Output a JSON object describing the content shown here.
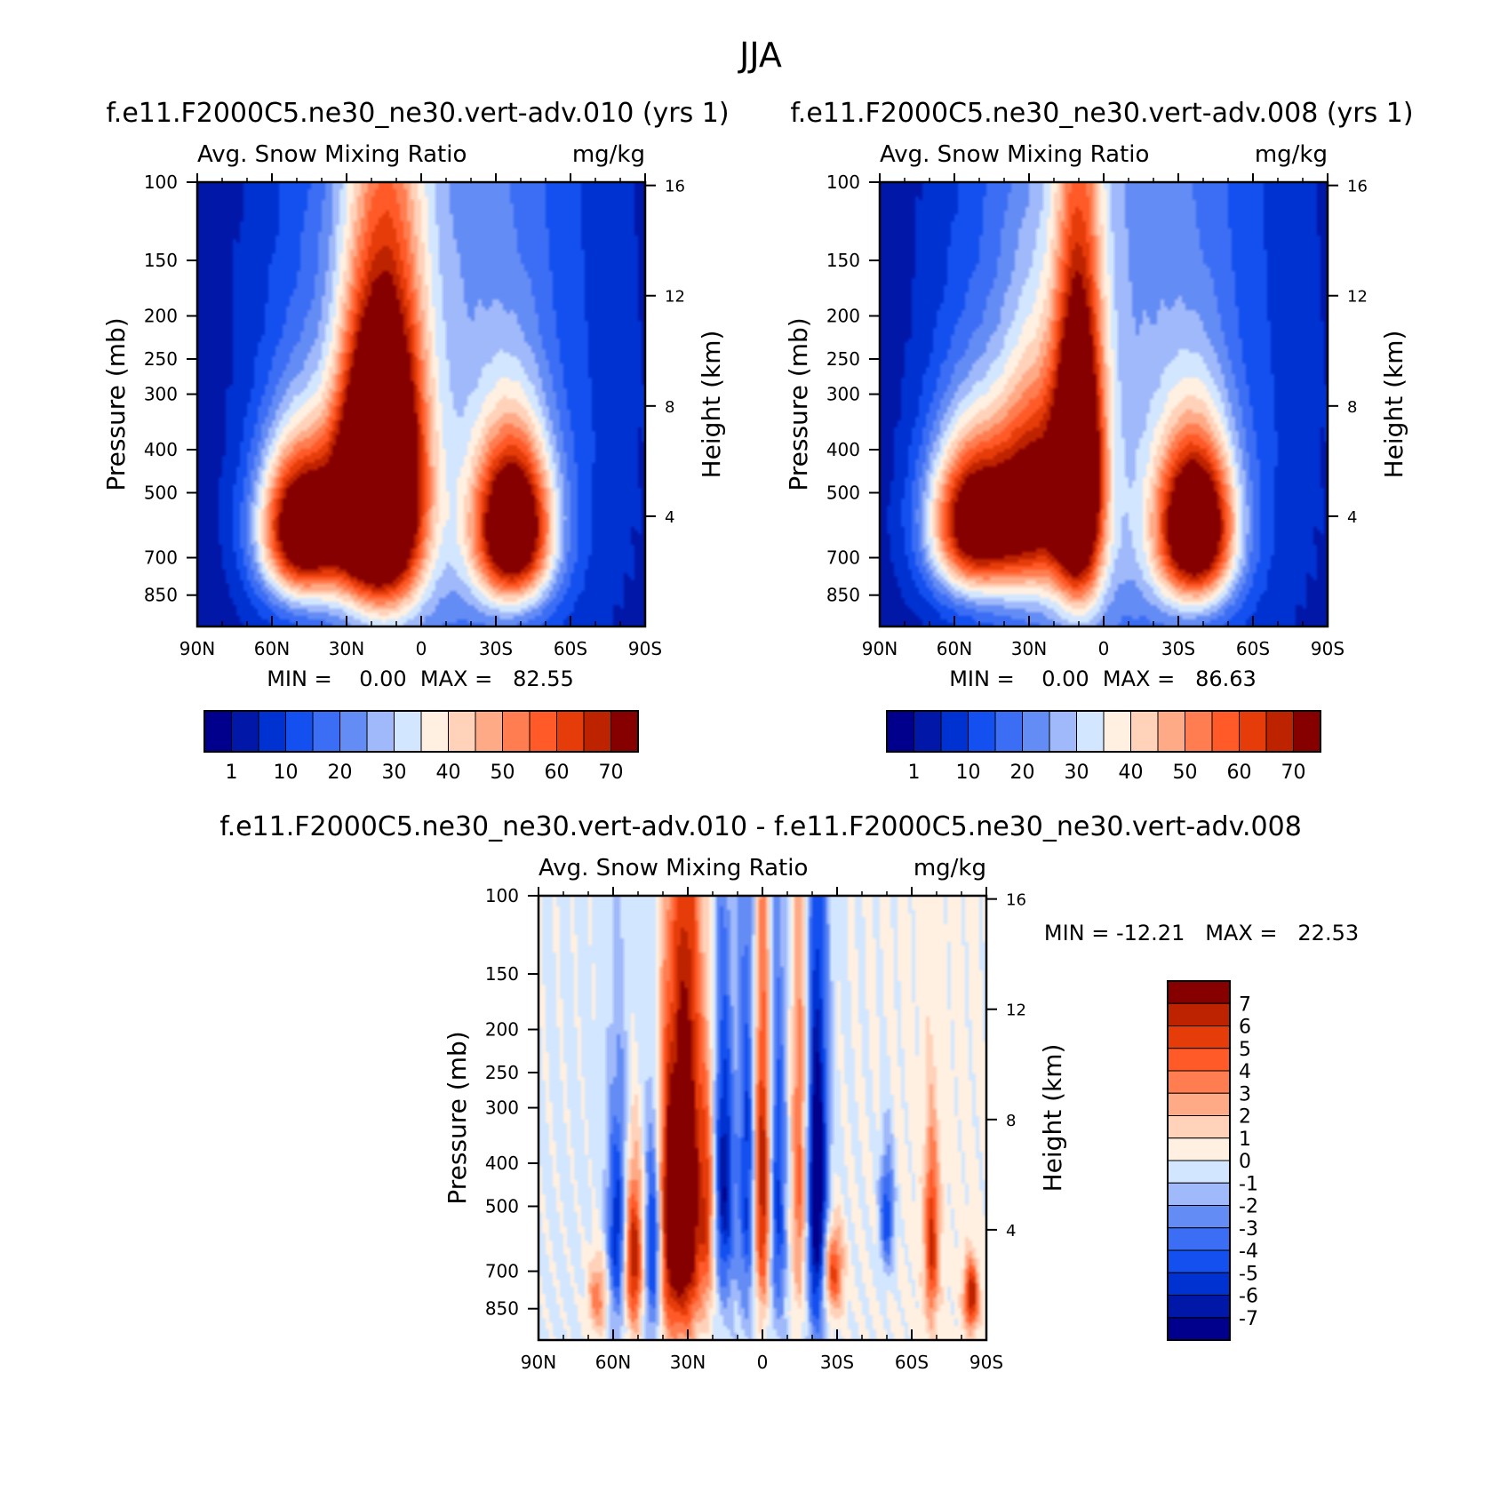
{
  "figure": {
    "title": "JJA"
  },
  "colors": {
    "levels_abs": [
      "#00008c",
      "#0017a8",
      "#0032d2",
      "#1450f0",
      "#3c6ef5",
      "#648cf5",
      "#a0b9fa",
      "#d2e6ff",
      "#fff0e1",
      "#ffd2b9",
      "#ffaa87",
      "#ff7d50",
      "#ff5a28",
      "#e63c0a",
      "#be2300",
      "#870000"
    ],
    "levels_diff": [
      "#00008c",
      "#0017a8",
      "#0032d2",
      "#1450f0",
      "#3c6ef5",
      "#648cf5",
      "#a0b9fa",
      "#d2e6ff",
      "#fff0e1",
      "#ffd2b9",
      "#ffaa87",
      "#ff7d50",
      "#ff5a28",
      "#e63c0a",
      "#be2300",
      "#870000"
    ]
  },
  "chart_data": [
    {
      "type": "heatmap",
      "id": "panel1",
      "title": "f.e11.F2000C5.ne30_ne30.vert-adv.010 (yrs 1)",
      "left_label": "Avg. Snow Mixing Ratio",
      "right_label": "mg/kg",
      "xlabel": "",
      "ylabel": "Pressure (mb)",
      "y2label": "Height (km)",
      "x_ticks": [
        "90N",
        "60N",
        "30N",
        "0",
        "30S",
        "60S",
        "90S"
      ],
      "x_values": [
        90,
        60,
        30,
        0,
        -30,
        -60,
        -90
      ],
      "y_ticks": [
        "100",
        "150",
        "200",
        "250",
        "300",
        "400",
        "500",
        "700",
        "850"
      ],
      "y_values": [
        100,
        150,
        200,
        250,
        300,
        400,
        500,
        700,
        850
      ],
      "y2_ticks": [
        "16",
        "12",
        "8",
        "4"
      ],
      "y2_values": [
        16,
        12,
        8,
        4
      ],
      "ylim": [
        100,
        1000
      ],
      "stats": "MIN =    0.00  MAX =   82.55",
      "colorbar_labels": [
        "1",
        "10",
        "20",
        "30",
        "40",
        "50",
        "60",
        "70"
      ],
      "blobs": [
        {
          "lat": 48,
          "p": 600,
          "sl": 12,
          "sp": 170,
          "a": 80
        },
        {
          "lat": 12,
          "p": 480,
          "sl": 10,
          "sp": 260,
          "a": 80
        },
        {
          "lat": 24,
          "p": 500,
          "sl": 9,
          "sp": 220,
          "a": 62
        },
        {
          "lat": -37,
          "p": 600,
          "sl": 11,
          "sp": 180,
          "a": 80
        },
        {
          "lat": 10,
          "p": 350,
          "sl": 38,
          "sp": 1000,
          "a": 16
        },
        {
          "lat": -25,
          "p": 400,
          "sl": 45,
          "sp": 600,
          "a": 12
        }
      ]
    },
    {
      "type": "heatmap",
      "id": "panel2",
      "title": "f.e11.F2000C5.ne30_ne30.vert-adv.008 (yrs 1)",
      "left_label": "Avg. Snow Mixing Ratio",
      "right_label": "mg/kg",
      "xlabel": "",
      "ylabel": "Pressure (mb)",
      "y2label": "Height (km)",
      "x_ticks": [
        "90N",
        "60N",
        "30N",
        "0",
        "30S",
        "60S",
        "90S"
      ],
      "x_values": [
        90,
        60,
        30,
        0,
        -30,
        -60,
        -90
      ],
      "y_ticks": [
        "100",
        "150",
        "200",
        "250",
        "300",
        "400",
        "500",
        "700",
        "850"
      ],
      "y_values": [
        100,
        150,
        200,
        250,
        300,
        400,
        500,
        700,
        850
      ],
      "y2_ticks": [
        "16",
        "12",
        "8",
        "4"
      ],
      "y2_values": [
        16,
        12,
        8,
        4
      ],
      "ylim": [
        100,
        1000
      ],
      "stats": "MIN =    0.00  MAX =   86.63",
      "colorbar_labels": [
        "1",
        "10",
        "20",
        "30",
        "40",
        "50",
        "60",
        "70"
      ],
      "blobs": [
        {
          "lat": 52,
          "p": 580,
          "sl": 13,
          "sp": 170,
          "a": 75
        },
        {
          "lat": 10,
          "p": 460,
          "sl": 7,
          "sp": 260,
          "a": 86
        },
        {
          "lat": 28,
          "p": 520,
          "sl": 10,
          "sp": 200,
          "a": 50
        },
        {
          "lat": -37,
          "p": 600,
          "sl": 11,
          "sp": 180,
          "a": 82
        },
        {
          "lat": 10,
          "p": 350,
          "sl": 38,
          "sp": 1000,
          "a": 16
        },
        {
          "lat": -25,
          "p": 400,
          "sl": 45,
          "sp": 600,
          "a": 12
        }
      ]
    },
    {
      "type": "heatmap",
      "id": "panel3",
      "title": "f.e11.F2000C5.ne30_ne30.vert-adv.010 - f.e11.F2000C5.ne30_ne30.vert-adv.008",
      "left_label": "Avg. Snow Mixing Ratio",
      "right_label": "mg/kg",
      "xlabel": "",
      "ylabel": "Pressure (mb)",
      "y2label": "Height (km)",
      "x_ticks": [
        "90N",
        "60N",
        "30N",
        "0",
        "30S",
        "60S",
        "90S"
      ],
      "x_values": [
        90,
        60,
        30,
        0,
        -30,
        -60,
        -90
      ],
      "y_ticks": [
        "100",
        "150",
        "200",
        "250",
        "300",
        "400",
        "500",
        "700",
        "850"
      ],
      "y_values": [
        100,
        150,
        200,
        250,
        300,
        400,
        500,
        700,
        850
      ],
      "y2_ticks": [
        "16",
        "12",
        "8",
        "4"
      ],
      "y2_values": [
        16,
        12,
        8,
        4
      ],
      "ylim": [
        100,
        1000
      ],
      "stats": "MIN = -12.21   MAX =   22.53",
      "colorbar_labels": [
        "7",
        "6",
        "5",
        "4",
        "3",
        "2",
        "1",
        "0",
        "-1",
        "-2",
        "-3",
        "-4",
        "-5",
        "-6",
        "-7"
      ],
      "blobs": [
        {
          "lat": 52,
          "p": 650,
          "sl": 3,
          "sp": 200,
          "a": 8
        },
        {
          "lat": 58,
          "p": 580,
          "sl": 3,
          "sp": 230,
          "a": -6
        },
        {
          "lat": 44,
          "p": 620,
          "sl": 2.5,
          "sp": 220,
          "a": -6
        },
        {
          "lat": 37,
          "p": 520,
          "sl": 3.5,
          "sp": 300,
          "a": 9
        },
        {
          "lat": 30,
          "p": 450,
          "sl": 3.5,
          "sp": 340,
          "a": 10
        },
        {
          "lat": 22,
          "p": 500,
          "sl": 3,
          "sp": 250,
          "a": 6
        },
        {
          "lat": 16,
          "p": 440,
          "sl": 3,
          "sp": 230,
          "a": -7
        },
        {
          "lat": 6,
          "p": 420,
          "sl": 2.5,
          "sp": 280,
          "a": -5
        },
        {
          "lat": 0,
          "p": 440,
          "sl": 2.5,
          "sp": 280,
          "a": 8
        },
        {
          "lat": -6,
          "p": 470,
          "sl": 2.5,
          "sp": 280,
          "a": -5
        },
        {
          "lat": -15,
          "p": 420,
          "sl": 2.5,
          "sp": 300,
          "a": 5
        },
        {
          "lat": -22,
          "p": 470,
          "sl": 3,
          "sp": 320,
          "a": -9
        },
        {
          "lat": -28,
          "p": 700,
          "sl": 3,
          "sp": 120,
          "a": 6
        },
        {
          "lat": -50,
          "p": 520,
          "sl": 2,
          "sp": 120,
          "a": -5
        },
        {
          "lat": -68,
          "p": 600,
          "sl": 2,
          "sp": 200,
          "a": 6
        },
        {
          "lat": -84,
          "p": 800,
          "sl": 2,
          "sp": 100,
          "a": 7
        },
        {
          "lat": 66,
          "p": 800,
          "sl": 3,
          "sp": 120,
          "a": 4
        },
        {
          "lat": 10,
          "p": 250,
          "sl": 50,
          "sp": 3000,
          "a": -0.6
        },
        {
          "lat": -60,
          "p": 300,
          "sl": 30,
          "sp": 3000,
          "a": 0.5
        }
      ]
    }
  ]
}
